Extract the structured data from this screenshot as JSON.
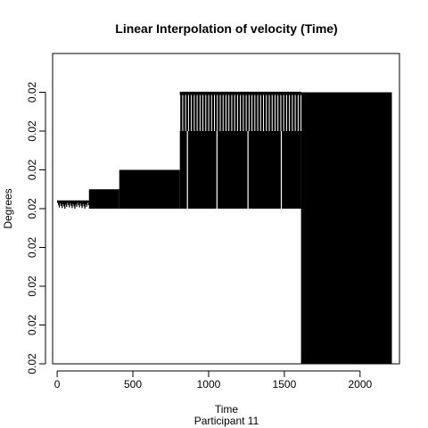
{
  "chart_data": {
    "type": "area",
    "title": "Linear Interpolation of velocity (Time)",
    "xlabel": "Time",
    "ylabel": "Degrees",
    "subtitle": "Participant  11",
    "xlim": [
      -30,
      2260
    ],
    "ylim": [
      0,
      8
    ],
    "x_ticks": [
      0,
      500,
      1000,
      1500,
      2000
    ],
    "y_tick_labels": [
      "0.02",
      "0.02",
      "0.02",
      "0.02",
      "0.02",
      "0.02",
      "0.02",
      "0.02"
    ],
    "fill_color": "#000000",
    "blocks": [
      {
        "x0": 210,
        "x1": 410,
        "y0": 4.0,
        "y1": 4.5
      },
      {
        "x0": 410,
        "x1": 810,
        "y0": 4.0,
        "y1": 5.0
      },
      {
        "x0": 810,
        "x1": 1610,
        "y0": 4.0,
        "y1": 6.0
      },
      {
        "x0": 810,
        "x1": 1610,
        "y0": 6.0,
        "y1": 7.0
      },
      {
        "x0": 1610,
        "x1": 2210,
        "y0": 0.0,
        "y1": 7.0
      }
    ],
    "spikes": [
      {
        "x0": 0,
        "x1": 210,
        "y_top": 4.2,
        "y_bottom_min": 4.0,
        "count": 35
      },
      {
        "x0": 810,
        "x1": 1610,
        "y_top": 7.0,
        "y_bottom": 6.0,
        "count": 42
      }
    ],
    "gaps": [
      860,
      1055,
      1260,
      1480
    ]
  }
}
